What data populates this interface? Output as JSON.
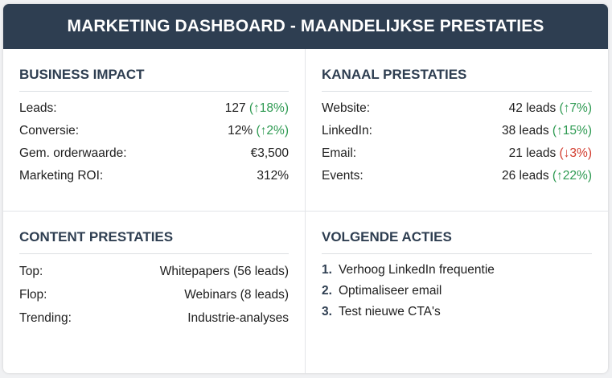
{
  "header": {
    "title": "MARKETING DASHBOARD - MAANDELIJKSE PRESTATIES"
  },
  "business_impact": {
    "title": "BUSINESS IMPACT",
    "rows": [
      {
        "label": "Leads:",
        "value": "127",
        "change": "(↑18%)",
        "trend": "up"
      },
      {
        "label": "Conversie:",
        "value": "12%",
        "change": "(↑2%)",
        "trend": "up"
      },
      {
        "label": "Gem. orderwaarde:",
        "value": "€3,500",
        "change": "",
        "trend": "none"
      },
      {
        "label": "Marketing ROI:",
        "value": "312%",
        "change": "",
        "trend": "none"
      }
    ]
  },
  "kanaal_prestaties": {
    "title": "KANAAL PRESTATIES",
    "rows": [
      {
        "label": "Website:",
        "value": "42 leads",
        "change": "(↑7%)",
        "trend": "up"
      },
      {
        "label": "LinkedIn:",
        "value": "38 leads",
        "change": "(↑15%)",
        "trend": "up"
      },
      {
        "label": "Email:",
        "value": "21 leads",
        "change": "(↓3%)",
        "trend": "down"
      },
      {
        "label": "Events:",
        "value": "26 leads",
        "change": "(↑22%)",
        "trend": "up"
      }
    ]
  },
  "content_prestaties": {
    "title": "CONTENT PRESTATIES",
    "rows": [
      {
        "label": "Top:",
        "value": "Whitepapers (56 leads)"
      },
      {
        "label": "Flop:",
        "value": "Webinars (8 leads)"
      },
      {
        "label": "Trending:",
        "value": "Industrie-analyses"
      }
    ]
  },
  "volgende_acties": {
    "title": "VOLGENDE ACTIES",
    "items": [
      {
        "num": "1.",
        "text": "Verhoog LinkedIn frequentie"
      },
      {
        "num": "2.",
        "text": "Optimaliseer email"
      },
      {
        "num": "3.",
        "text": "Test nieuwe CTA's"
      }
    ]
  },
  "colors": {
    "header_bg": "#2e3e51",
    "positive": "#2e9a52",
    "negative": "#d23a2c"
  }
}
